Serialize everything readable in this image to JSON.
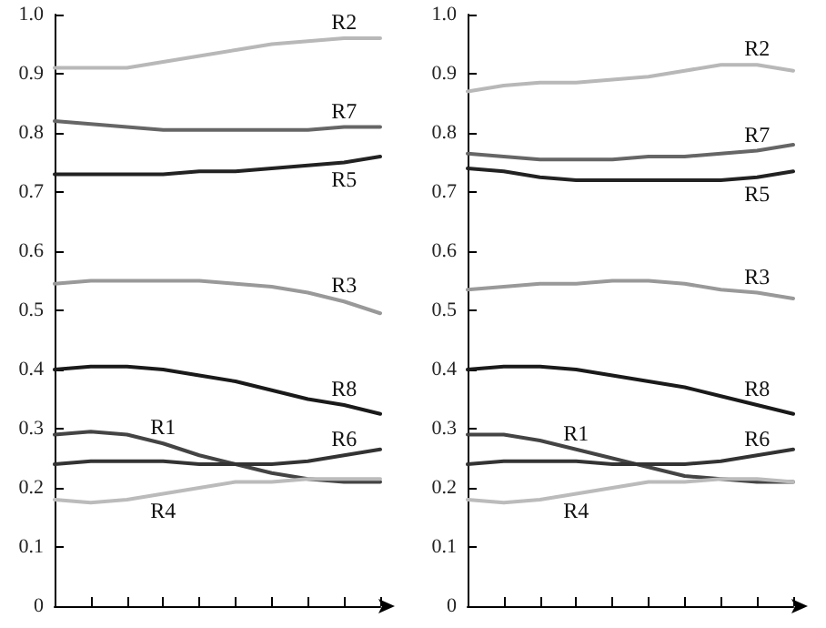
{
  "chart_data": [
    {
      "type": "line",
      "categories": [
        null,
        null,
        null,
        null,
        null,
        null,
        null,
        null,
        null,
        null
      ],
      "ylim": [
        0,
        1
      ],
      "yticks": [
        0,
        0.1,
        0.2,
        0.3,
        0.4,
        0.5,
        0.6,
        0.7,
        0.8,
        0.9,
        {
          "value": 1,
          "label": "1.0"
        }
      ],
      "grid": false,
      "legend": false,
      "marker": "none",
      "line_style": "solid",
      "series": [
        {
          "name": "R2",
          "color": "#b8b8b8",
          "values": [
            0.91,
            0.91,
            0.91,
            0.92,
            0.93,
            0.94,
            0.95,
            0.955,
            0.96,
            0.96
          ]
        },
        {
          "name": "R7",
          "color": "#666666",
          "values": [
            0.82,
            0.815,
            0.81,
            0.805,
            0.805,
            0.805,
            0.805,
            0.805,
            0.81,
            0.81
          ]
        },
        {
          "name": "R5",
          "color": "#222222",
          "values": [
            0.73,
            0.73,
            0.73,
            0.73,
            0.735,
            0.735,
            0.74,
            0.745,
            0.75,
            0.76
          ]
        },
        {
          "name": "R3",
          "color": "#999999",
          "values": [
            0.545,
            0.55,
            0.55,
            0.55,
            0.55,
            0.545,
            0.54,
            0.53,
            0.515,
            0.495
          ]
        },
        {
          "name": "R8",
          "color": "#1a1a1a",
          "values": [
            0.4,
            0.405,
            0.405,
            0.4,
            0.39,
            0.38,
            0.365,
            0.35,
            0.34,
            0.325
          ]
        },
        {
          "name": "R1",
          "color": "#444444",
          "values": [
            0.29,
            0.295,
            0.29,
            0.275,
            0.255,
            0.24,
            0.225,
            0.215,
            0.21,
            0.21
          ]
        },
        {
          "name": "R6",
          "color": "#333333",
          "values": [
            0.24,
            0.245,
            0.245,
            0.245,
            0.24,
            0.24,
            0.24,
            0.245,
            0.255,
            0.265
          ]
        },
        {
          "name": "R4",
          "color": "#bbbbbb",
          "values": [
            0.18,
            0.175,
            0.18,
            0.19,
            0.2,
            0.21,
            0.21,
            0.215,
            0.215,
            0.215
          ]
        }
      ]
    },
    {
      "type": "line",
      "categories": [
        null,
        null,
        null,
        null,
        null,
        null,
        null,
        null,
        null,
        null
      ],
      "ylim": [
        0,
        1
      ],
      "yticks": [
        0,
        0.1,
        0.2,
        0.3,
        0.4,
        0.5,
        0.6,
        0.7,
        0.8,
        0.9,
        {
          "value": 1,
          "label": "1.0"
        }
      ],
      "grid": false,
      "legend": false,
      "marker": "none",
      "line_style": "solid",
      "series": [
        {
          "name": "R2",
          "color": "#b8b8b8",
          "values": [
            0.87,
            0.88,
            0.885,
            0.885,
            0.89,
            0.895,
            0.905,
            0.915,
            0.915,
            0.905
          ]
        },
        {
          "name": "R7",
          "color": "#666666",
          "values": [
            0.765,
            0.76,
            0.755,
            0.755,
            0.755,
            0.76,
            0.76,
            0.765,
            0.77,
            0.78
          ]
        },
        {
          "name": "R5",
          "color": "#222222",
          "values": [
            0.74,
            0.735,
            0.725,
            0.72,
            0.72,
            0.72,
            0.72,
            0.72,
            0.725,
            0.735
          ]
        },
        {
          "name": "R3",
          "color": "#999999",
          "values": [
            0.535,
            0.54,
            0.545,
            0.545,
            0.55,
            0.55,
            0.545,
            0.535,
            0.53,
            0.52
          ]
        },
        {
          "name": "R8",
          "color": "#1a1a1a",
          "values": [
            0.4,
            0.405,
            0.405,
            0.4,
            0.39,
            0.38,
            0.37,
            0.355,
            0.34,
            0.325
          ]
        },
        {
          "name": "R1",
          "color": "#444444",
          "values": [
            0.29,
            0.29,
            0.28,
            0.265,
            0.25,
            0.235,
            0.22,
            0.215,
            0.21,
            0.21
          ]
        },
        {
          "name": "R6",
          "color": "#333333",
          "values": [
            0.24,
            0.245,
            0.245,
            0.245,
            0.24,
            0.24,
            0.24,
            0.245,
            0.255,
            0.265
          ]
        },
        {
          "name": "R4",
          "color": "#bbbbbb",
          "values": [
            0.18,
            0.175,
            0.18,
            0.19,
            0.2,
            0.21,
            0.21,
            0.215,
            0.215,
            0.21
          ]
        }
      ]
    }
  ]
}
